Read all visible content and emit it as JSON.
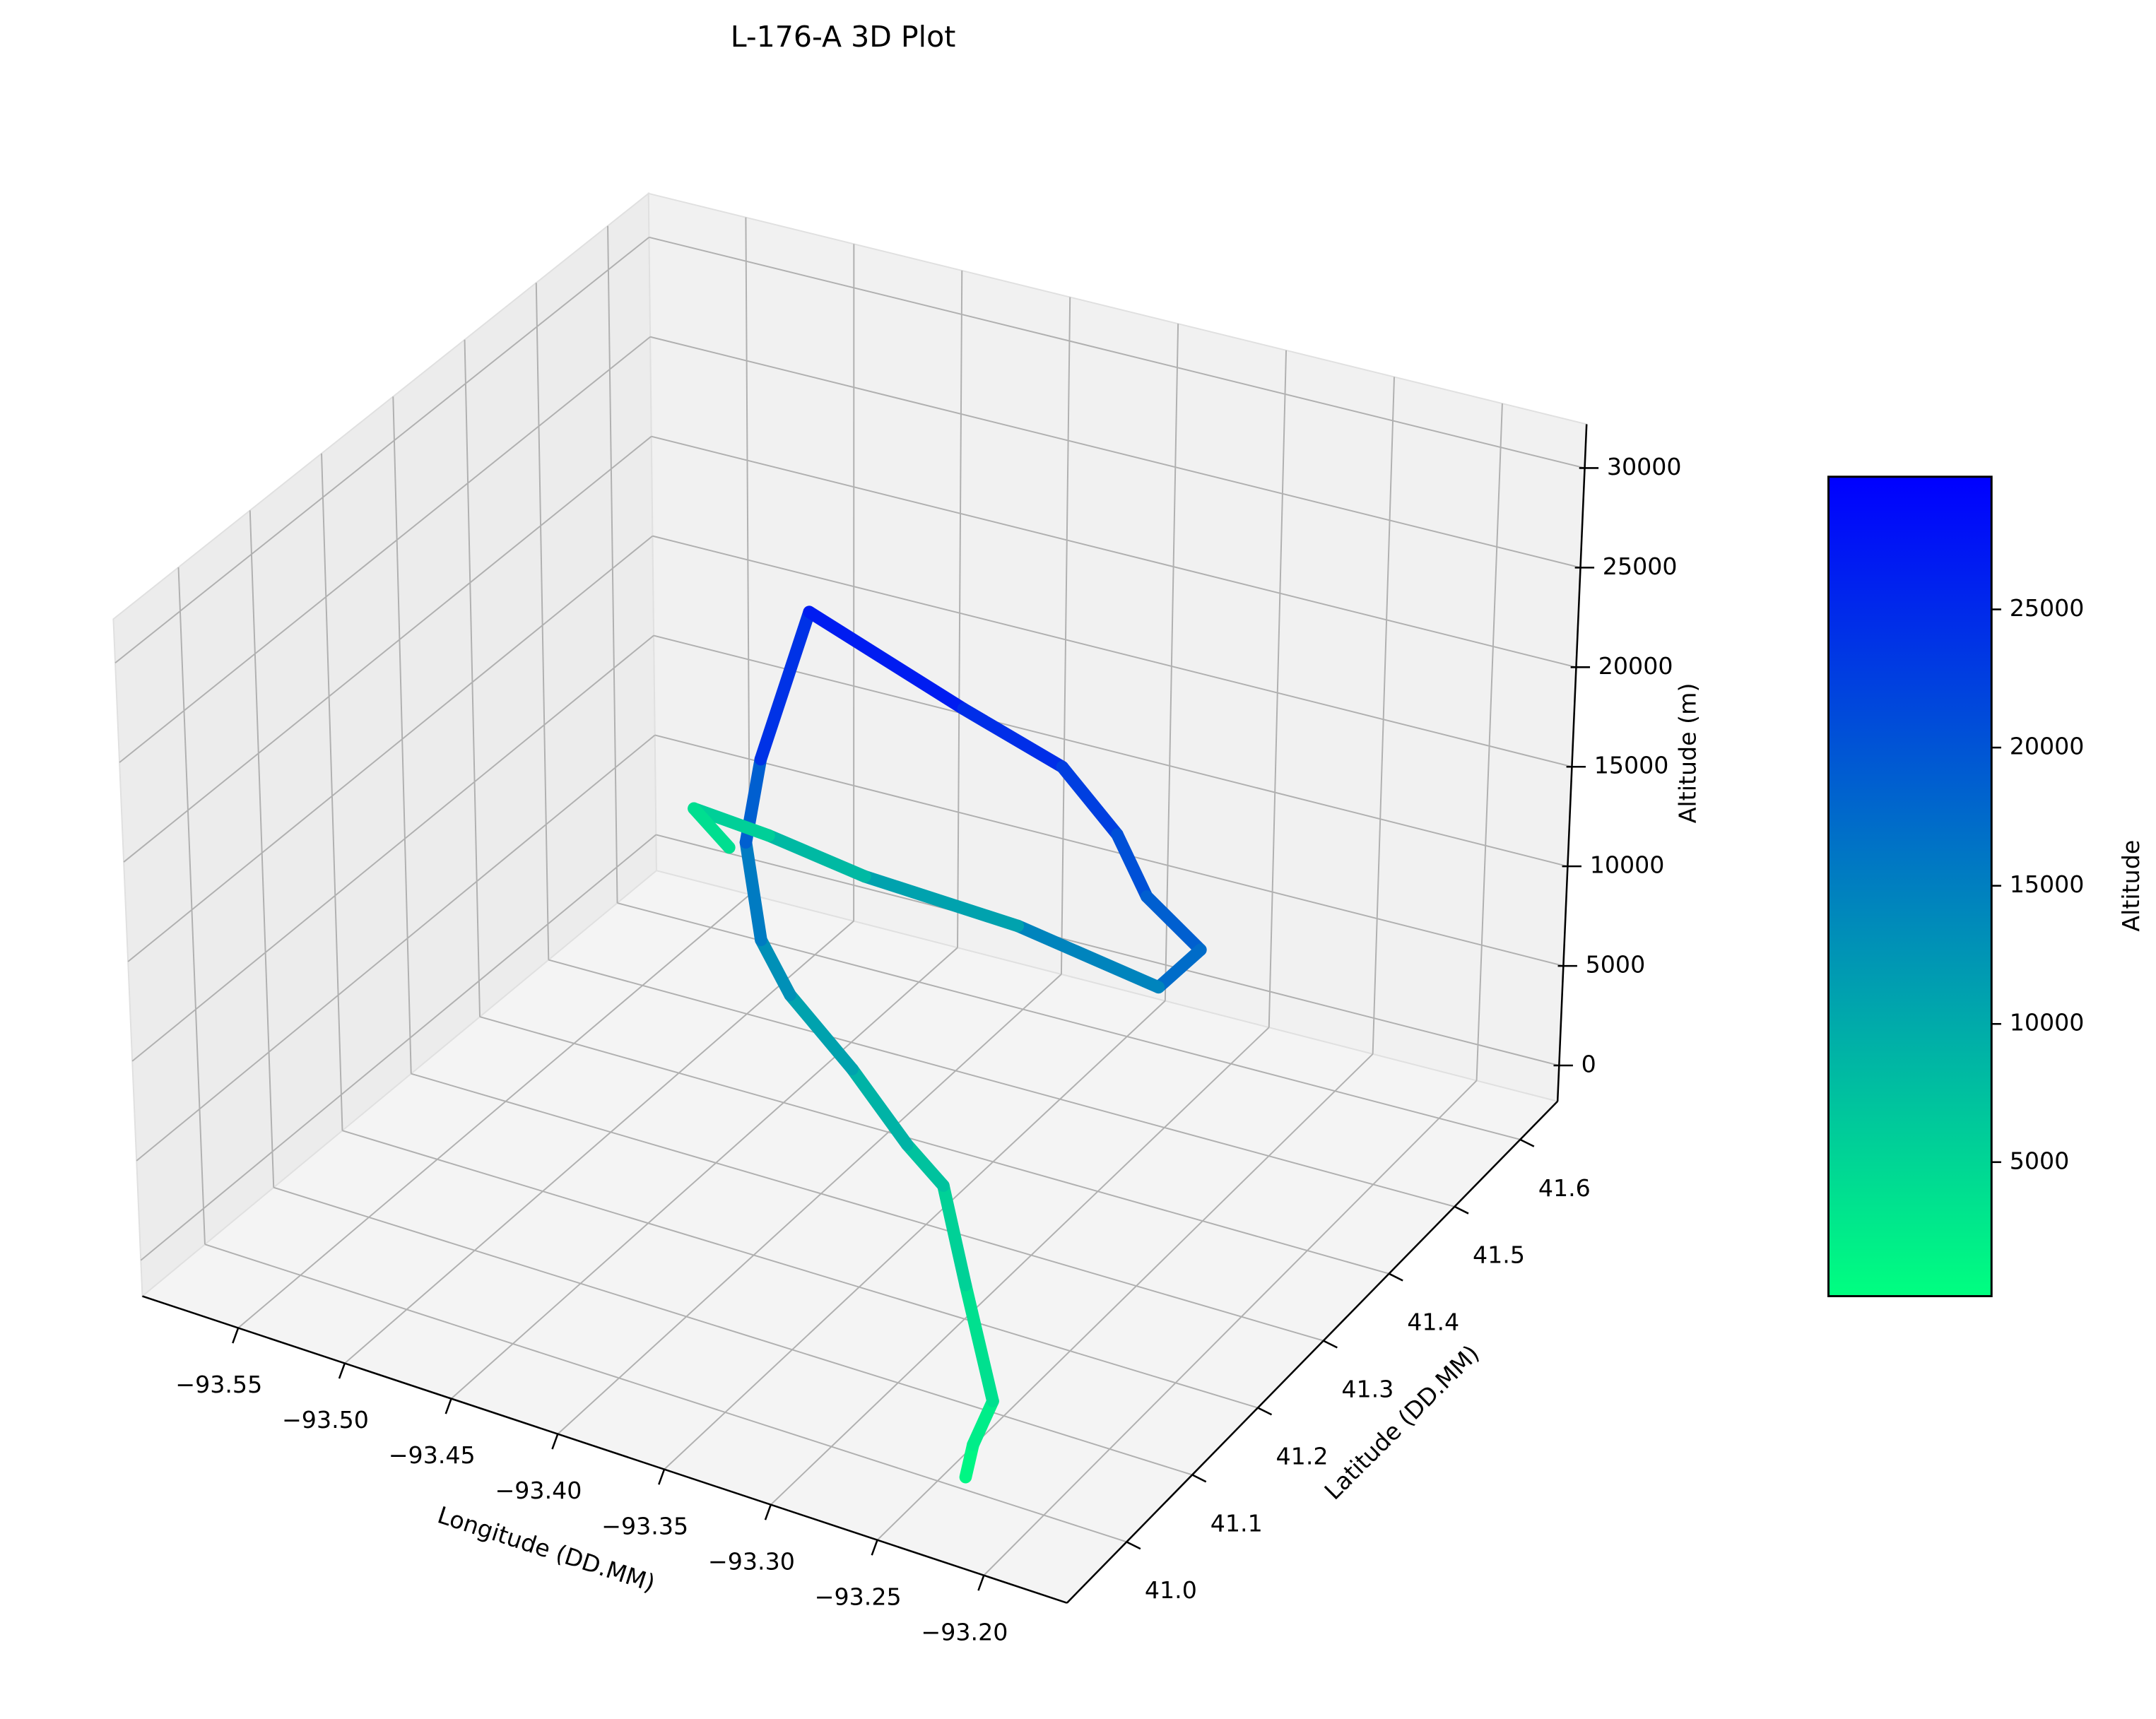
{
  "chart_data": {
    "type": "line3d",
    "title": "L-176-A 3D Plot",
    "x_label": "Longitude (DD.MM)",
    "y_label": "Latitude (DD.MM)",
    "z_label": "Altitude (m)",
    "series": [
      {
        "x": [
          -93.223,
          -93.227,
          -93.225,
          -93.266,
          -93.296,
          -93.313,
          -93.346,
          -93.381,
          -93.397,
          -93.417,
          -93.417,
          -93.403,
          -93.327,
          -93.285,
          -93.255,
          -93.236,
          -93.208,
          -93.22,
          -93.323,
          -93.421,
          -93.493,
          -93.553,
          -93.532
        ],
        "y": [
          40.955,
          40.979,
          41.002,
          41.092,
          41.154,
          41.154,
          41.177,
          41.196,
          41.204,
          41.245,
          41.267,
          41.294,
          41.278,
          41.29,
          41.276,
          41.26,
          41.251,
          41.228,
          41.348,
          41.43,
          41.512,
          41.586,
          41.573
        ],
        "z": [
          800,
          1500,
          3000,
          4500,
          6500,
          8000,
          10000,
          12000,
          14000,
          17000,
          20500,
          27500,
          25500,
          23500,
          21500,
          19500,
          18000,
          16500,
          12500,
          9500,
          7000,
          4500,
          3500
        ]
      }
    ],
    "xlim": [
      -93.595,
      -93.161
    ],
    "ylim": [
      40.909,
      41.657
    ],
    "zlim": [
      -1800,
      32200
    ],
    "xticks": [
      {
        "value": -93.55,
        "label": "−93.55"
      },
      {
        "value": -93.5,
        "label": "−93.50"
      },
      {
        "value": -93.45,
        "label": "−93.45"
      },
      {
        "value": -93.4,
        "label": "−93.40"
      },
      {
        "value": -93.35,
        "label": "−93.35"
      },
      {
        "value": -93.3,
        "label": "−93.30"
      },
      {
        "value": -93.25,
        "label": "−93.25"
      },
      {
        "value": -93.2,
        "label": "−93.20"
      }
    ],
    "yticks": [
      {
        "value": 41.0,
        "label": "41.0"
      },
      {
        "value": 41.1,
        "label": "41.1"
      },
      {
        "value": 41.2,
        "label": "41.2"
      },
      {
        "value": 41.3,
        "label": "41.3"
      },
      {
        "value": 41.4,
        "label": "41.4"
      },
      {
        "value": 41.5,
        "label": "41.5"
      },
      {
        "value": 41.6,
        "label": "41.6"
      }
    ],
    "zticks": [
      0,
      5000,
      10000,
      15000,
      20000,
      25000,
      30000
    ],
    "grid": true,
    "colorbar": {
      "label": "Altitude",
      "clim": [
        150,
        29800
      ],
      "ticks": [
        5000,
        10000,
        15000,
        20000,
        25000
      ],
      "colors": [
        "#00ff80",
        "#0000ff"
      ]
    }
  }
}
